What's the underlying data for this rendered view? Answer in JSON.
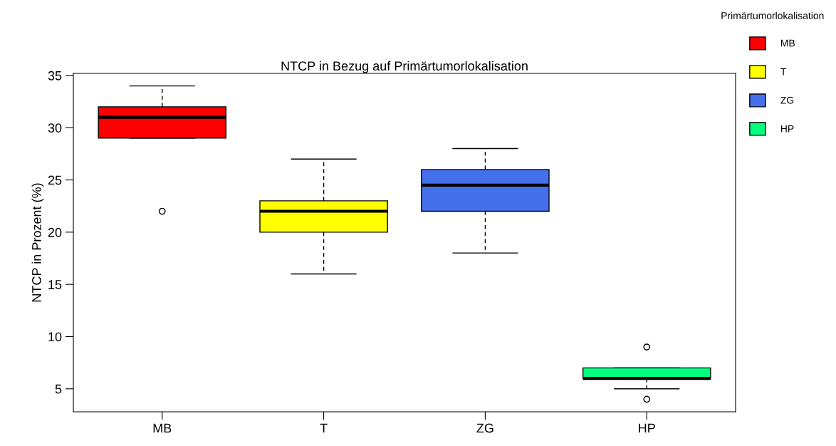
{
  "chart_data": {
    "type": "box",
    "title": "NTCP in Bezug auf Primärtumorlokalisation",
    "ylabel": "NTCP in Prozent (%)",
    "legend_title": "Primärtumorlokalisation",
    "categories": [
      "MB",
      "T",
      "ZG",
      "HP"
    ],
    "series": [
      {
        "name": "MB",
        "color": "#ff0000",
        "boxes": [
          {
            "low": 29,
            "q1": 29,
            "median": 31,
            "q3": 32,
            "high": 34,
            "outliers": [
              22
            ]
          },
          null,
          null,
          null
        ]
      },
      {
        "name": "T",
        "color": "#ffff00",
        "boxes": [
          null,
          {
            "low": 16,
            "q1": 20,
            "median": 22,
            "q3": 23,
            "high": 27
          },
          null,
          null
        ]
      },
      {
        "name": "ZG",
        "color": "#4570eb",
        "boxes": [
          null,
          null,
          {
            "low": 18,
            "q1": 22,
            "median": 24.5,
            "q3": 26,
            "high": 28
          },
          null
        ]
      },
      {
        "name": "HP",
        "color": "#00ff7f",
        "boxes": [
          null,
          null,
          null,
          {
            "low": 5,
            "q1": 6,
            "median": 6,
            "q3": 7,
            "high": 7,
            "outliers": [
              9,
              4
            ]
          }
        ]
      }
    ],
    "ylim": [
      2.8,
      35.2
    ],
    "yticks": [
      5,
      10,
      15,
      20,
      25,
      30,
      35
    ],
    "grid": false,
    "legend": "top right"
  }
}
